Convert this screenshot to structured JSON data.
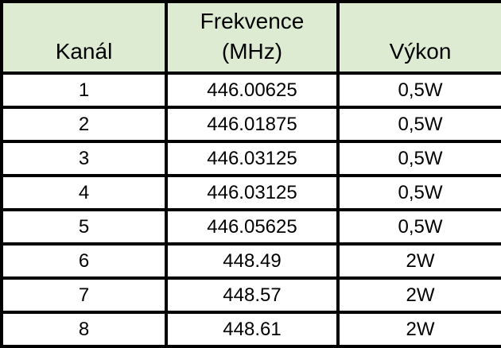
{
  "colors": {
    "header_bg": "#dcebd2",
    "row_bg": "#ffffff",
    "border": "#000000",
    "text": "#000000"
  },
  "table": {
    "columns": [
      {
        "label": "Kanál"
      },
      {
        "label_line1": "Frekvence",
        "label_line2": "(MHz)"
      },
      {
        "label": "Výkon"
      }
    ],
    "rows": [
      {
        "channel": "1",
        "frequency": "446.00625",
        "power": "0,5W"
      },
      {
        "channel": "2",
        "frequency": "446.01875",
        "power": "0,5W"
      },
      {
        "channel": "3",
        "frequency": "446.03125",
        "power": "0,5W"
      },
      {
        "channel": "4",
        "frequency": "446.03125",
        "power": "0,5W"
      },
      {
        "channel": "5",
        "frequency": "446.05625",
        "power": "0,5W"
      },
      {
        "channel": "6",
        "frequency": "448.49",
        "power": "2W"
      },
      {
        "channel": "7",
        "frequency": "448.57",
        "power": "2W"
      },
      {
        "channel": "8",
        "frequency": "448.61",
        "power": "2W"
      }
    ]
  }
}
